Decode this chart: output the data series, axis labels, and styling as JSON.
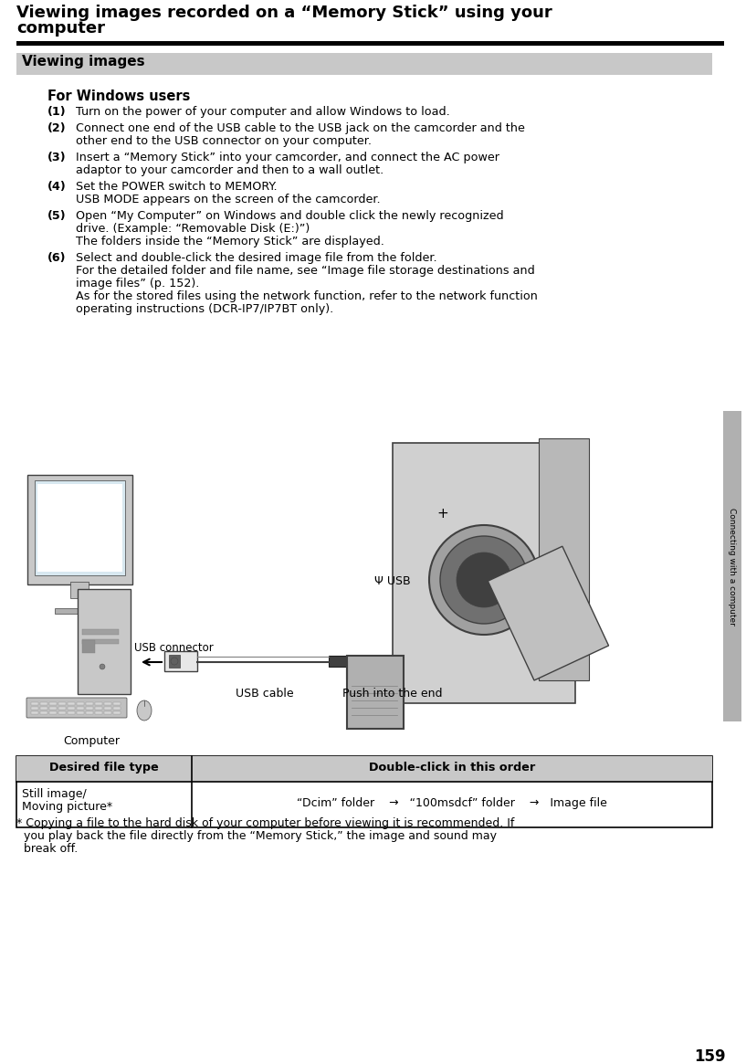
{
  "page_title_line1": "Viewing images recorded on a “Memory Stick” using your",
  "page_title_line2": "computer",
  "section_header": "Viewing images",
  "section_header_bg": "#c8c8c8",
  "subsection_title": "For Windows users",
  "steps": [
    {
      "num": "(1)",
      "text": "Turn on the power of your computer and allow Windows to load."
    },
    {
      "num": "(2)",
      "text1": "Connect one end of the USB cable to the USB jack on the camcorder and the",
      "text2": "other end to the USB connector on your computer."
    },
    {
      "num": "(3)",
      "text1": "Insert a “Memory Stick” into your camcorder, and connect the AC power",
      "text2": "adaptor to your camcorder and then to a wall outlet."
    },
    {
      "num": "(4)",
      "text1": "Set the POWER switch to MEMORY.",
      "text2": "USB MODE appears on the screen of the camcorder."
    },
    {
      "num": "(5)",
      "text1": "Open “My Computer” on Windows and double click the newly recognized",
      "text2": "drive. (Example: “Removable Disk (E:)”)",
      "text3": "The folders inside the “Memory Stick” are displayed."
    },
    {
      "num": "(6)",
      "text1": "Select and double-click the desired image file from the folder.",
      "text2": "For the detailed folder and file name, see “Image file storage destinations and",
      "text3": "image files” (p. 152).",
      "text4": "As for the stored files using the network function, refer to the network function",
      "text5": "operating instructions (DCR-IP7/IP7BT only)."
    }
  ],
  "diagram_labels": {
    "usb_symbol": "Ψ USB",
    "usb_connector": "USB connector",
    "usb_cable": "USB cable",
    "push": "Push into the end",
    "computer": "Computer"
  },
  "sidebar_text": "Connecting with a computer",
  "sidebar_color": "#b0b0b0",
  "table_header_col1": "Desired file type",
  "table_header_col2": "Double-click in this order",
  "table_row_col1_line1": "Still image/",
  "table_row_col1_line2": "Moving picture*",
  "table_row_col2": "“Dcim” folder    →   “100msdcf” folder    →   Image file",
  "footnote_line1": "* Copying a file to the hard disk of your computer before viewing it is recommended. If",
  "footnote_line2": "  you play back the file directly from the “Memory Stick,” the image and sound may",
  "footnote_line3": "  break off.",
  "page_number": "159",
  "bg_color": "#ffffff",
  "text_color": "#000000",
  "title_separator_color": "#000000",
  "table_border_color": "#000000",
  "table_header_bg": "#c8c8c8"
}
